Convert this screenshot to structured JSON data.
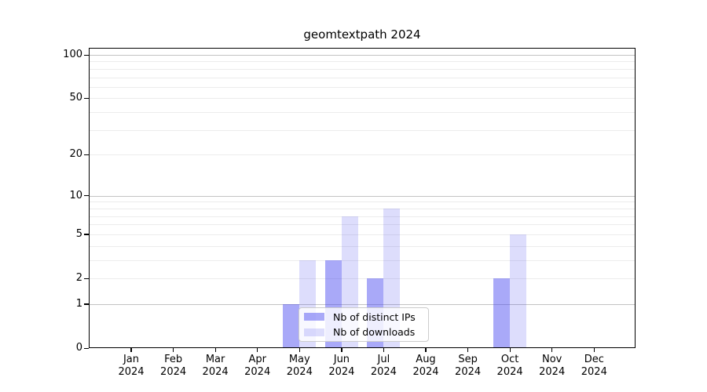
{
  "chart_data": {
    "type": "bar",
    "title": "geomtextpath 2024",
    "x": {
      "categories": [
        "Jan",
        "Feb",
        "Mar",
        "Apr",
        "May",
        "Jun",
        "Jul",
        "Aug",
        "Sep",
        "Oct",
        "Nov",
        "Dec"
      ],
      "year_label": "2024"
    },
    "series": [
      {
        "name": "Nb of distinct IPs",
        "values": [
          0,
          0,
          0,
          0,
          1,
          3,
          2,
          0,
          0,
          2,
          0,
          0
        ],
        "color": "rgba(64,64,240,0.45)"
      },
      {
        "name": "Nb of downloads",
        "values": [
          0,
          0,
          0,
          0,
          3,
          7,
          8,
          0,
          0,
          5,
          0,
          0
        ],
        "color": "rgba(64,64,240,0.18)"
      }
    ],
    "y_axis": {
      "scale": "log1p",
      "tick_values": [
        0,
        1,
        2,
        5,
        10,
        20,
        50,
        100
      ],
      "major_gridlines": [
        1,
        10,
        100
      ],
      "minor_gridlines": [
        2,
        3,
        4,
        5,
        6,
        7,
        8,
        9,
        20,
        30,
        40,
        50,
        60,
        70,
        80,
        90
      ]
    },
    "grid": {
      "major_color": "#c3c3c3",
      "minor_color": "#ececec"
    },
    "legend": {
      "position": "inside-bottom-center"
    }
  }
}
